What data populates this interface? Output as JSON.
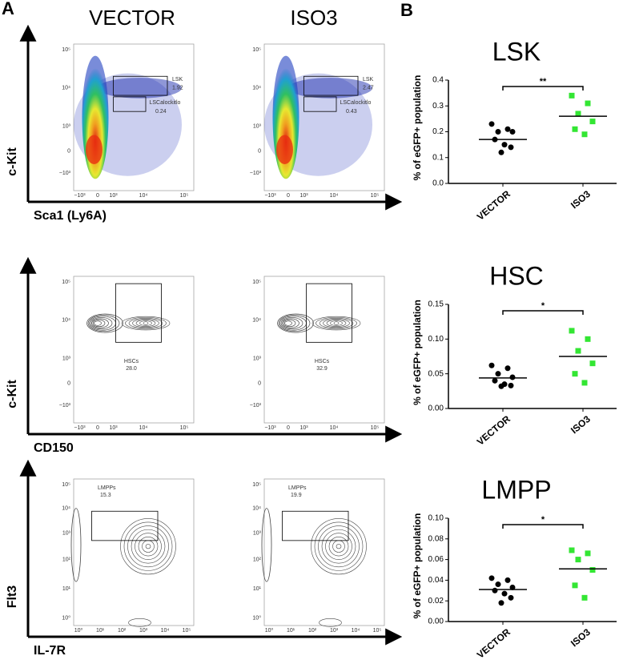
{
  "panel_labels": {
    "a": "A",
    "b": "B"
  },
  "columns": [
    "VECTOR",
    "ISO3"
  ],
  "flow_rows": [
    {
      "y_label": "c-Kit",
      "x_label": "Sca1 (Ly6A)",
      "yticks": [
        "10⁵",
        "10⁴",
        "10³",
        "0",
        "−10³"
      ],
      "xticks": [
        "−10³",
        "0",
        "10³",
        "10⁴",
        "10⁵"
      ],
      "plots": [
        {
          "gates": [
            {
              "name": "LSK",
              "value": "1.92"
            },
            {
              "name": "LSCalockitlo",
              "value": "0.24"
            }
          ]
        },
        {
          "gates": [
            {
              "name": "LSK",
              "value": "2.47"
            },
            {
              "name": "LSCalockitlo",
              "value": "0.43"
            }
          ]
        }
      ]
    },
    {
      "y_label": "c-Kit",
      "x_label": "CD150",
      "yticks": [
        "10⁵",
        "10⁴",
        "10³",
        "0",
        "−10³"
      ],
      "xticks": [
        "−10³",
        "0",
        "10³",
        "10⁴",
        "10⁵"
      ],
      "plots": [
        {
          "gates": [
            {
              "name": "HSCs",
              "value": "28.0"
            }
          ]
        },
        {
          "gates": [
            {
              "name": "HSCs",
              "value": "32.9"
            }
          ]
        }
      ]
    },
    {
      "y_label": "Flt3",
      "x_label": "IL-7R",
      "yticks": [
        "10⁵",
        "10⁴",
        "10³",
        "10²",
        "10¹",
        "10⁰"
      ],
      "xticks": [
        "10⁰",
        "10¹",
        "10²",
        "10³",
        "10⁴",
        "10⁵"
      ],
      "plots": [
        {
          "gates": [
            {
              "name": "LMPPs",
              "value": "15.3"
            }
          ]
        },
        {
          "gates": [
            {
              "name": "LMPPs",
              "value": "19.9"
            }
          ]
        }
      ]
    }
  ],
  "chart_data": [
    {
      "type": "strip",
      "title": "LSK",
      "y_label": "% of eGFP+ population",
      "categories": [
        "VECTOR",
        "ISO3"
      ],
      "series": [
        {
          "color": "#000000",
          "marker": "circle",
          "values": [
            0.23,
            0.21,
            0.2,
            0.2,
            0.17,
            0.15,
            0.14,
            0.12
          ],
          "mean": 0.17
        },
        {
          "color": "#33e633",
          "marker": "square",
          "values": [
            0.34,
            0.31,
            0.27,
            0.24,
            0.21,
            0.19
          ],
          "mean": 0.26
        }
      ],
      "significance": "**",
      "ylim": [
        0,
        0.4
      ],
      "yticks": [
        {
          "value": 0,
          "label": "0.0"
        },
        0.1,
        0.2,
        0.3,
        0.4
      ]
    },
    {
      "type": "strip",
      "title": "HSC",
      "y_label": "% of eGFP+ population",
      "categories": [
        "VECTOR",
        "ISO3"
      ],
      "series": [
        {
          "color": "#000000",
          "marker": "circle",
          "values": [
            0.062,
            0.058,
            0.05,
            0.045,
            0.04,
            0.035,
            0.033,
            0.032
          ],
          "mean": 0.044
        },
        {
          "color": "#33e633",
          "marker": "square",
          "values": [
            0.112,
            0.1,
            0.083,
            0.065,
            0.05,
            0.037
          ],
          "mean": 0.075
        }
      ],
      "significance": "*",
      "ylim": [
        0,
        0.15
      ],
      "yticks": [
        {
          "value": 0,
          "label": "0.00"
        },
        0.05,
        {
          "value": 0.1,
          "label": "0.10"
        },
        0.15
      ]
    },
    {
      "type": "strip",
      "title": "LMPP",
      "y_label": "% of eGFP+ population",
      "categories": [
        "VECTOR",
        "ISO3"
      ],
      "series": [
        {
          "color": "#000000",
          "marker": "circle",
          "values": [
            0.042,
            0.04,
            0.036,
            0.033,
            0.03,
            0.027,
            0.023,
            0.018
          ],
          "mean": 0.031
        },
        {
          "color": "#33e633",
          "marker": "square",
          "values": [
            0.069,
            0.066,
            0.06,
            0.05,
            0.035,
            0.023
          ],
          "mean": 0.051
        }
      ],
      "significance": "*",
      "ylim": [
        0,
        0.1
      ],
      "yticks": [
        {
          "value": 0,
          "label": "0.00"
        },
        0.02,
        0.04,
        0.06,
        0.08,
        {
          "value": 0.1,
          "label": "0.10"
        }
      ]
    }
  ]
}
